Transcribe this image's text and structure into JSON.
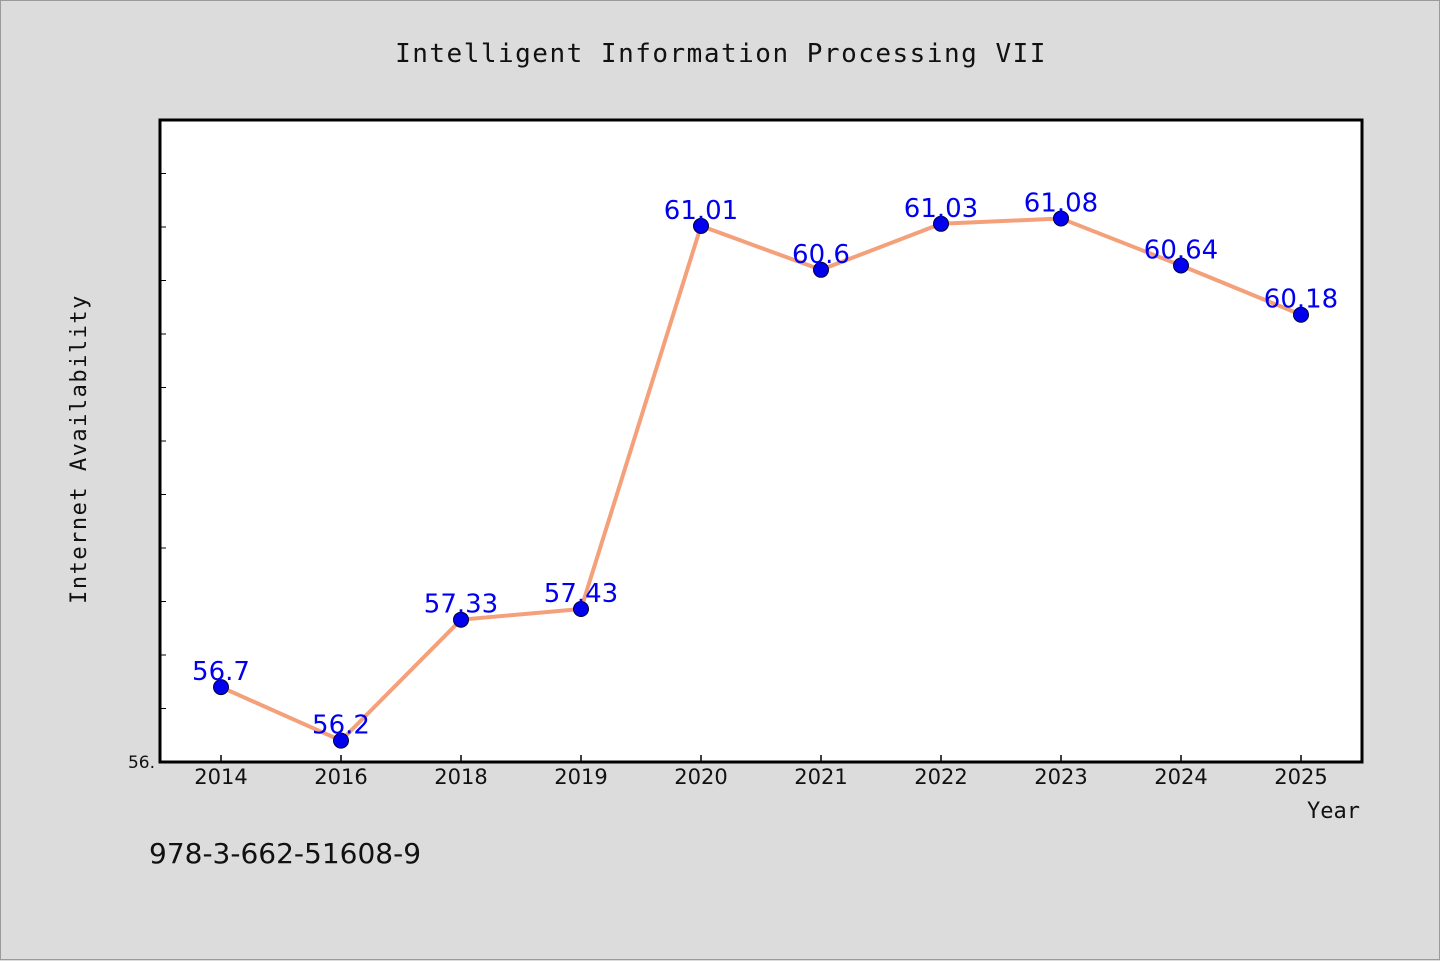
{
  "chart_data": {
    "type": "line",
    "title": "Intelligent Information Processing VII",
    "xlabel": "Year",
    "ylabel": "Internet Availability",
    "categories": [
      "2014",
      "2016",
      "2018",
      "2019",
      "2020",
      "2021",
      "2022",
      "2023",
      "2024",
      "2025"
    ],
    "series": [
      {
        "values": [
          56.7,
          56.2,
          57.33,
          57.43,
          61.01,
          60.6,
          61.03,
          61.08,
          60.64,
          60.18
        ],
        "data_labels": [
          "56.7",
          "56.2",
          "57.33",
          "57.43",
          "61.01",
          "60.6",
          "61.03",
          "61.08",
          "60.64",
          "60.18"
        ]
      }
    ],
    "y_tick_label": "56.",
    "ylim": [
      56.0,
      62.0
    ],
    "y_minor_tick_step": 0.5,
    "grid": false,
    "colors": {
      "line": "#f4a07a",
      "marker": "#0000ee",
      "data_label": "#0000ee",
      "plot_background": "#ffffff",
      "figure_background": "#dcdcdc"
    }
  },
  "footer_text": "978-3-662-51608-9"
}
